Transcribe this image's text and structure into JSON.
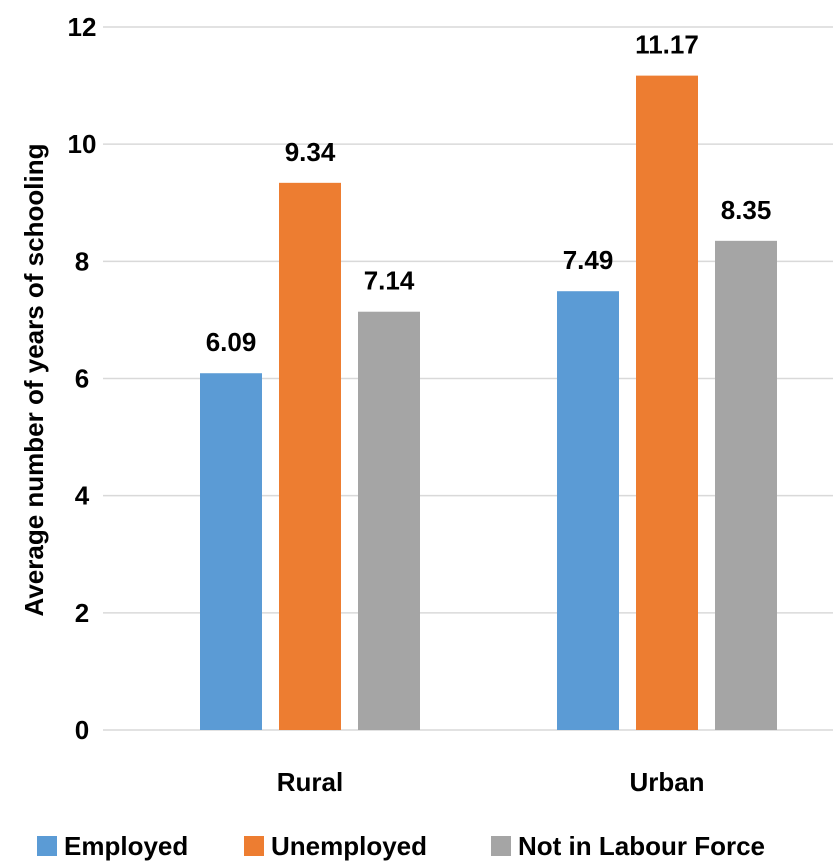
{
  "chart_data": {
    "type": "bar",
    "categories": [
      "Rural",
      "Urban"
    ],
    "series": [
      {
        "name": "Employed",
        "values": [
          6.09,
          7.49
        ],
        "color": "#5B9BD5"
      },
      {
        "name": "Unemployed",
        "values": [
          9.34,
          11.17
        ],
        "color": "#ED7D31"
      },
      {
        "name": "Not in Labour Force",
        "values": [
          7.14,
          8.35
        ],
        "color": "#A5A5A5"
      }
    ],
    "data_labels": [
      [
        "6.09",
        "7.49"
      ],
      [
        "9.34",
        "11.17"
      ],
      [
        "7.14",
        "8.35"
      ]
    ],
    "ylabel": "Average number of years of schooling",
    "xlabel": "",
    "ylim": [
      0,
      12
    ],
    "yticks": [
      "0",
      "2",
      "4",
      "6",
      "8",
      "10",
      "12"
    ],
    "grid": true,
    "legend_position": "bottom"
  }
}
